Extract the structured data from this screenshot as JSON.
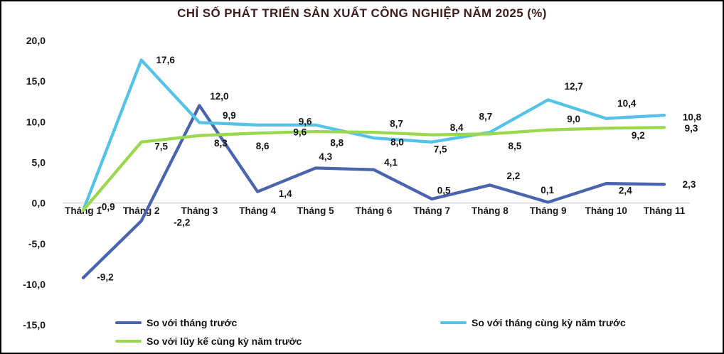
{
  "title": "CHỈ SỐ PHÁT TRIỂN SẢN XUẤT CÔNG NGHIỆP NĂM 2025 (%)",
  "colors": {
    "title_text": "#401d1d",
    "axis_text": "#1a1a1a",
    "label_text": "#141414",
    "zero_line": "#d6d6d6",
    "background": "#ffffff",
    "border": "#000000"
  },
  "chart_data": {
    "type": "line",
    "categories": [
      "Tháng 1",
      "Tháng 2",
      "Tháng 3",
      "Tháng 4",
      "Tháng 5",
      "Tháng 6",
      "Tháng 7",
      "Tháng 8",
      "Tháng 9",
      "Tháng 10",
      "Tháng 11"
    ],
    "y_axis": {
      "min": -15,
      "max": 20,
      "step": 5,
      "tick_labels": [
        "20,0",
        "15,0",
        "10,0",
        "5,0",
        "0,0",
        "-5,0",
        "-10,0",
        "-15,0"
      ]
    },
    "grid": "zero-line-only",
    "legend_position": "bottom",
    "series": [
      {
        "name": "So với tháng trước",
        "color": "#4a64ae",
        "values": [
          -9.2,
          -2.2,
          12.0,
          1.4,
          4.3,
          4.1,
          0.5,
          2.2,
          0.1,
          2.4,
          2.3
        ],
        "labels": [
          "-9,2",
          "-2,2",
          "12,0",
          "1,4",
          "4,3",
          "4,1",
          "0,5",
          "2,2",
          "0,1",
          "2,4",
          "2,3"
        ],
        "label_offsets": [
          [
            31,
            -1
          ],
          [
            57,
            2
          ],
          [
            28,
            -13
          ],
          [
            39,
            3
          ],
          [
            14,
            -16
          ],
          [
            24,
            -10
          ],
          [
            17,
            -12
          ],
          [
            33,
            -13
          ],
          [
            -1,
            -17
          ],
          [
            27,
            10
          ],
          [
            35,
            0
          ]
        ]
      },
      {
        "name": "So với tháng  cùng kỳ năm trước",
        "color": "#55c3e7",
        "values": [
          -0.9,
          17.6,
          9.9,
          9.6,
          9.6,
          8.0,
          7.5,
          8.7,
          12.7,
          10.4,
          10.8
        ],
        "labels": [
          "-0,9",
          "17,6",
          "9,9",
          "9,6",
          "9,6",
          "8,0",
          "7,5",
          "8,7",
          "12,7",
          "10,4",
          "10,8"
        ],
        "label_offsets": [
          [
            33,
            -5
          ],
          [
            34,
            0
          ],
          [
            42,
            -10
          ],
          [
            67,
            -5
          ],
          [
            -22,
            10
          ],
          [
            33,
            6
          ],
          [
            12,
            10
          ],
          [
            -6,
            -22
          ],
          [
            36,
            -19
          ],
          [
            29,
            -21
          ],
          [
            39,
            3
          ]
        ]
      },
      {
        "name": "So với lũy kế cùng kỳ năm trước",
        "color": "#9cd84f",
        "values": [
          -0.9,
          7.5,
          8.3,
          8.6,
          8.8,
          8.7,
          8.4,
          8.5,
          9.0,
          9.2,
          9.3
        ],
        "labels": [
          "",
          "7,5",
          "8,3",
          "8,6",
          "8,8",
          "8,7",
          "8,4",
          "8,5",
          "9,0",
          "9,2",
          "9,3"
        ],
        "label_offsets": [
          [
            0,
            0
          ],
          [
            28,
            6
          ],
          [
            30,
            11
          ],
          [
            7,
            18
          ],
          [
            30,
            16
          ],
          [
            32,
            -12
          ],
          [
            35,
            -10
          ],
          [
            35,
            17
          ],
          [
            36,
            -15
          ],
          [
            45,
            10
          ],
          [
            38,
            1
          ]
        ]
      }
    ]
  }
}
